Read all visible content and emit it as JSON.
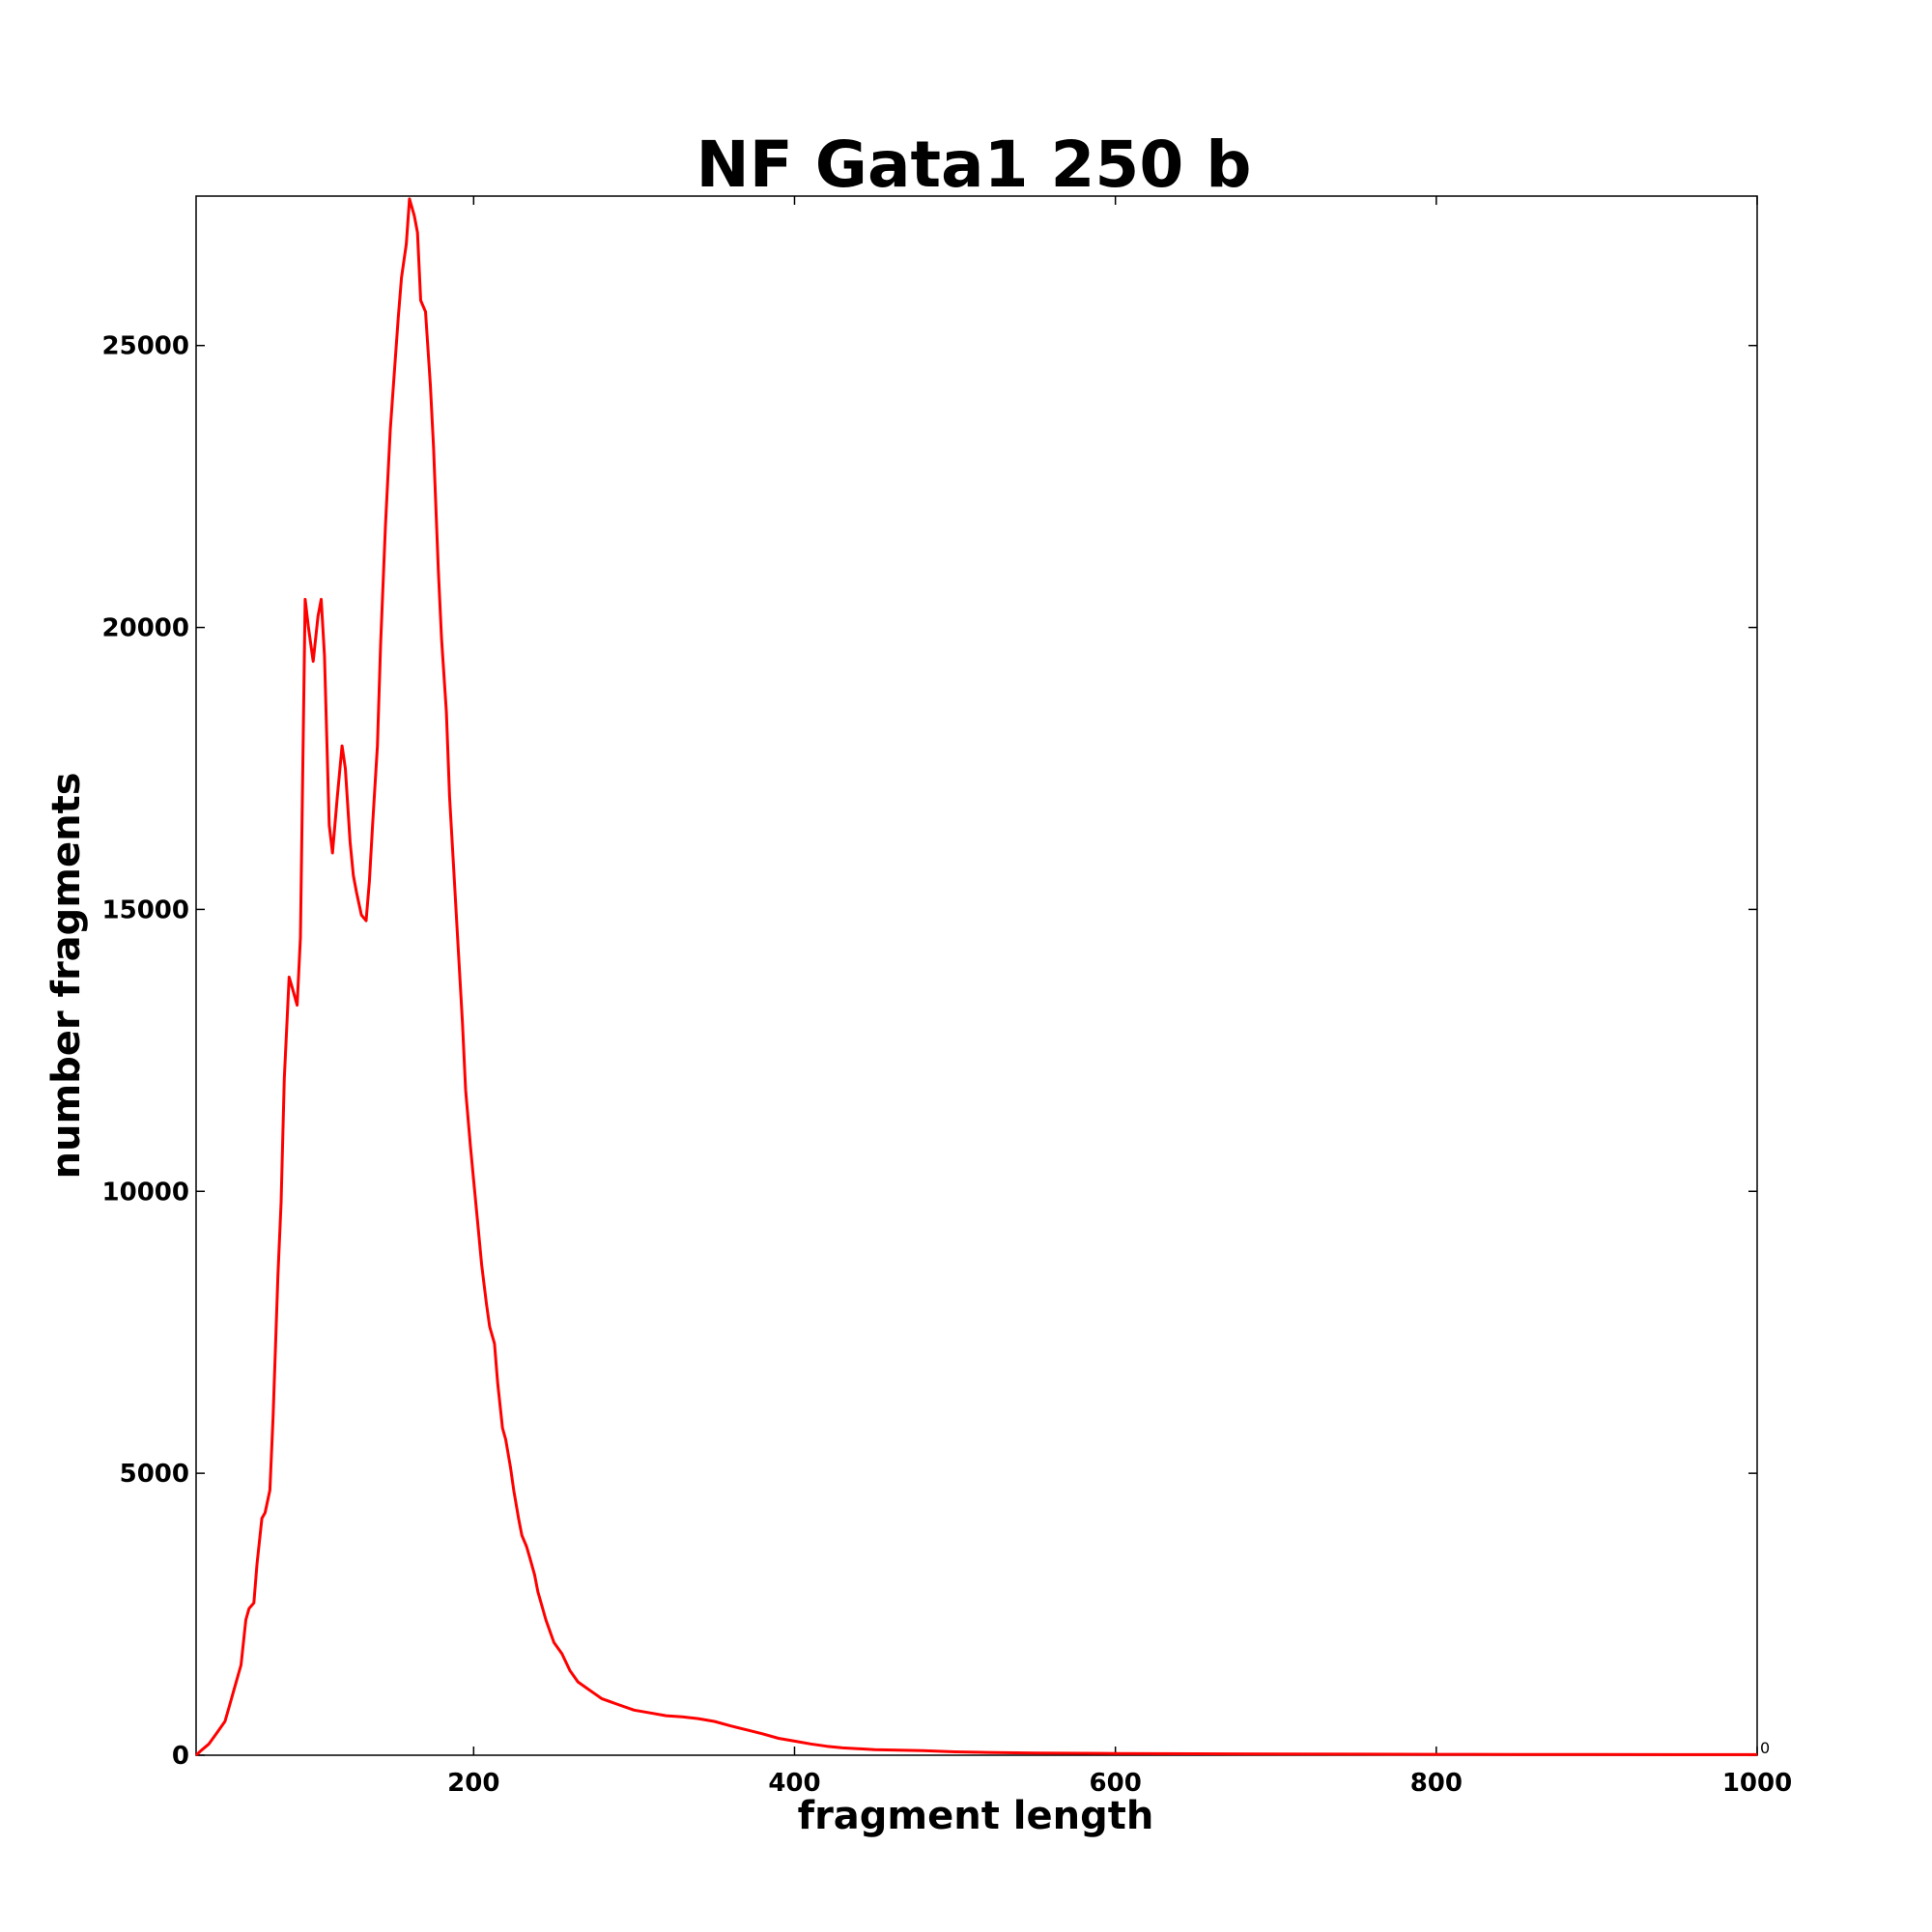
{
  "chart_data": {
    "type": "line",
    "title": "NF Gata1 250 b",
    "xlabel": "fragment length",
    "ylabel": "number fragments",
    "xlim": [
      27,
      1000
    ],
    "ylim": [
      0,
      27650
    ],
    "xticks": [
      200,
      400,
      600,
      800,
      1000
    ],
    "yticks": [
      0,
      5000,
      10000,
      15000,
      20000,
      25000
    ],
    "xtick_labels": [
      "200",
      "400",
      "600",
      "800",
      "1000"
    ],
    "ytick_labels": [
      "0",
      "5000",
      "10000",
      "15000",
      "20000",
      "25000"
    ],
    "right_axis_label": "0",
    "grid": false,
    "legend": "none",
    "series": [
      {
        "color": "#ff0000",
        "x": [
          27,
          30,
          35,
          40,
          45,
          48,
          50,
          55,
          58,
          60,
          63,
          65,
          68,
          70,
          73,
          75,
          78,
          80,
          82,
          85,
          87,
          90,
          92,
          95,
          97,
          100,
          103,
          105,
          107,
          110,
          112,
          115,
          118,
          120,
          123,
          125,
          127,
          130,
          133,
          135,
          137,
          140,
          142,
          145,
          148,
          150,
          153,
          155,
          158,
          160,
          163,
          165,
          167,
          170,
          173,
          175,
          178,
          180,
          183,
          185,
          188,
          190,
          193,
          195,
          198,
          200,
          203,
          205,
          208,
          210,
          213,
          215,
          218,
          220,
          223,
          225,
          228,
          230,
          233,
          235,
          238,
          240,
          245,
          250,
          255,
          260,
          265,
          270,
          275,
          280,
          290,
          300,
          310,
          320,
          330,
          340,
          350,
          360,
          370,
          380,
          390,
          400,
          410,
          420,
          430,
          450,
          480,
          500,
          520,
          550,
          600,
          650,
          700,
          750,
          800,
          850,
          900,
          950,
          1000
        ],
        "y": [
          0,
          80,
          200,
          400,
          600,
          900,
          1100,
          1600,
          2400,
          2600,
          2700,
          3400,
          4200,
          4300,
          4700,
          6000,
          8500,
          9800,
          12000,
          13800,
          13600,
          13300,
          14500,
          20500,
          20000,
          19400,
          20200,
          20500,
          19500,
          16500,
          16000,
          17000,
          17900,
          17500,
          16200,
          15600,
          15300,
          14900,
          14800,
          15500,
          16500,
          17900,
          19700,
          21800,
          23500,
          24300,
          25500,
          26200,
          26800,
          27600,
          27300,
          27000,
          25800,
          25600,
          24300,
          23200,
          21000,
          19800,
          18500,
          17000,
          15500,
          14500,
          13000,
          11800,
          10800,
          10200,
          9300,
          8700,
          8000,
          7600,
          7300,
          6600,
          5800,
          5600,
          5100,
          4700,
          4200,
          3900,
          3700,
          3500,
          3200,
          2900,
          2400,
          2000,
          1800,
          1500,
          1300,
          1200,
          1100,
          1000,
          900,
          800,
          750,
          700,
          680,
          650,
          600,
          520,
          450,
          380,
          300,
          250,
          200,
          160,
          130,
          100,
          80,
          60,
          50,
          40,
          30,
          25,
          20,
          18,
          16,
          14,
          12,
          10,
          10
        ]
      }
    ]
  }
}
